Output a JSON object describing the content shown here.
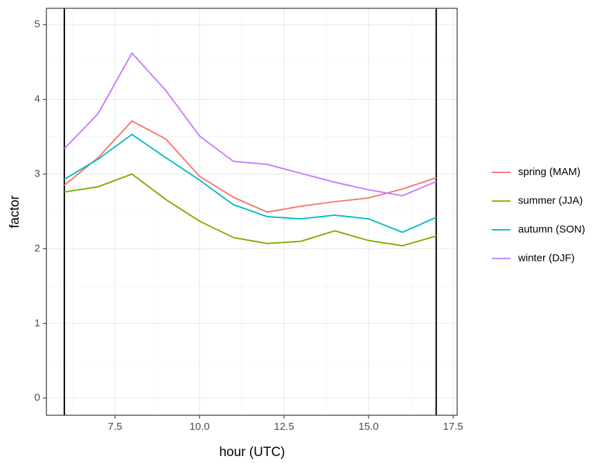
{
  "chart_data": {
    "type": "line",
    "x_label": "hour (UTC)",
    "y_label": "factor",
    "x": [
      6,
      7,
      8,
      9,
      10,
      11,
      12,
      13,
      14,
      15,
      16,
      17
    ],
    "series": [
      {
        "name": "spring (MAM)",
        "color": "#F8766D",
        "values": [
          2.85,
          3.22,
          3.71,
          3.47,
          2.97,
          2.69,
          2.49,
          2.57,
          2.63,
          2.68,
          2.8,
          2.95
        ]
      },
      {
        "name": "summer (JJA)",
        "color": "#7CAE00",
        "values": [
          2.76,
          2.83,
          3.0,
          2.66,
          2.37,
          2.15,
          2.07,
          2.1,
          2.24,
          2.11,
          2.04,
          2.17
        ]
      },
      {
        "name": "autumn (SON)",
        "color": "#00BFC4",
        "values": [
          2.93,
          3.2,
          3.53,
          3.22,
          2.92,
          2.59,
          2.43,
          2.4,
          2.45,
          2.4,
          2.22,
          2.42
        ]
      },
      {
        "name": "winter (DJF)",
        "color": "#C77CFF",
        "values": [
          3.34,
          3.81,
          4.62,
          4.12,
          3.51,
          3.17,
          3.13,
          3.01,
          2.89,
          2.79,
          2.71,
          2.9
        ]
      }
    ],
    "xlim": [
      5.47,
      17.62
    ],
    "ylim": [
      -0.23,
      5.22
    ],
    "xticks": [
      7.5,
      {
        "value": 10,
        "label": "10.0"
      },
      12.5,
      {
        "value": 15,
        "label": "15.0"
      },
      17.5
    ],
    "yticks": [
      0,
      1,
      2,
      3,
      4,
      5
    ],
    "vlines": [
      6,
      17
    ],
    "grid": true,
    "legend": "right"
  }
}
